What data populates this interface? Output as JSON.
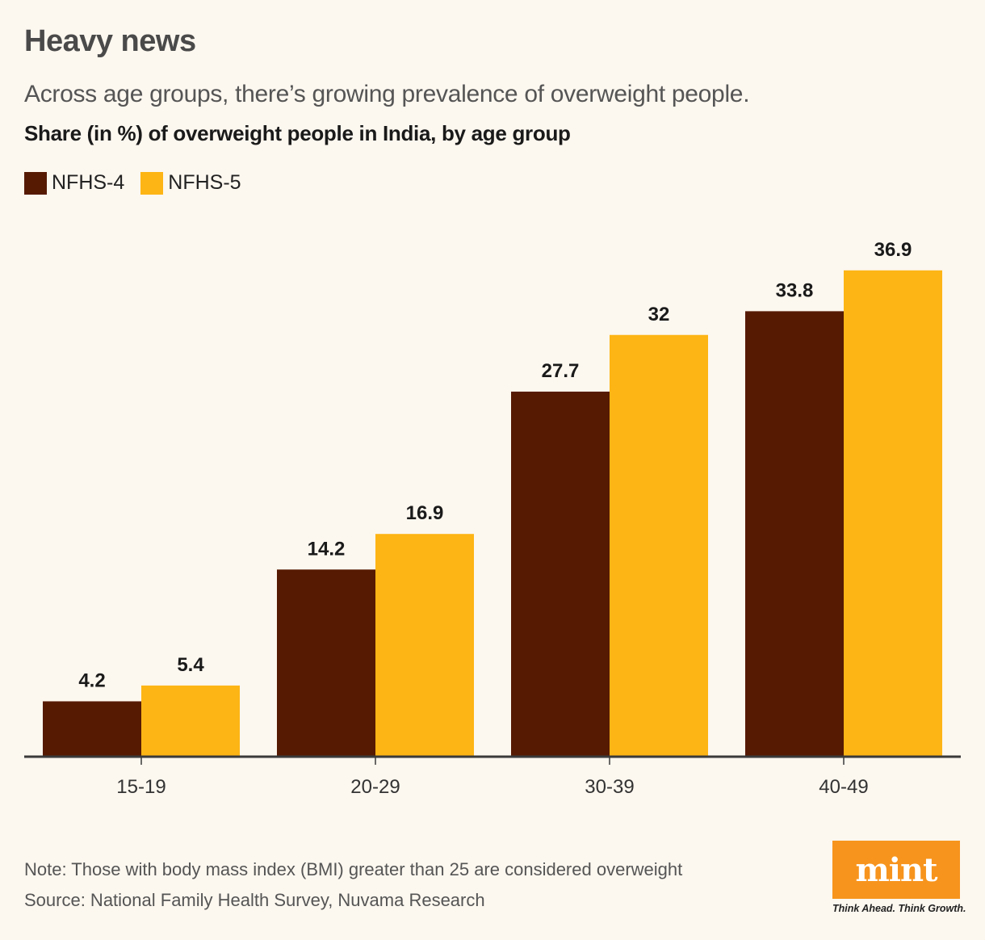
{
  "header": {
    "title": "Heavy news",
    "subtitle": "Across age groups, there’s growing prevalence of overweight people.",
    "chart_title": "Share (in %) of overweight people in India, by age group"
  },
  "footer": {
    "note": "Note: Those with body mass index (BMI) greater than 25 are considered overweight",
    "source": "Source: National Family Health Survey, Nuvama Research",
    "logo_text": "mint",
    "logo_tagline": "Think Ahead. Think Growth."
  },
  "colors": {
    "nfhs4": "#561a03",
    "nfhs5": "#fdb515",
    "axis": "#3a3a3a",
    "logo": "#f7941d"
  },
  "chart_data": {
    "type": "bar",
    "title": "Share (in %) of overweight people in India, by age group",
    "xlabel": "",
    "ylabel": "",
    "ylim": [
      0,
      40
    ],
    "grid": false,
    "legend_position": "top-left",
    "categories": [
      "15-19",
      "20-29",
      "30-39",
      "40-49"
    ],
    "series": [
      {
        "name": "NFHS-4",
        "values": [
          4.2,
          14.2,
          27.7,
          33.8
        ],
        "labels": [
          "4.2",
          "14.2",
          "27.7",
          "33.8"
        ]
      },
      {
        "name": "NFHS-5",
        "values": [
          5.4,
          16.9,
          32,
          36.9
        ],
        "labels": [
          "5.4",
          "16.9",
          "32",
          "36.9"
        ]
      }
    ]
  }
}
